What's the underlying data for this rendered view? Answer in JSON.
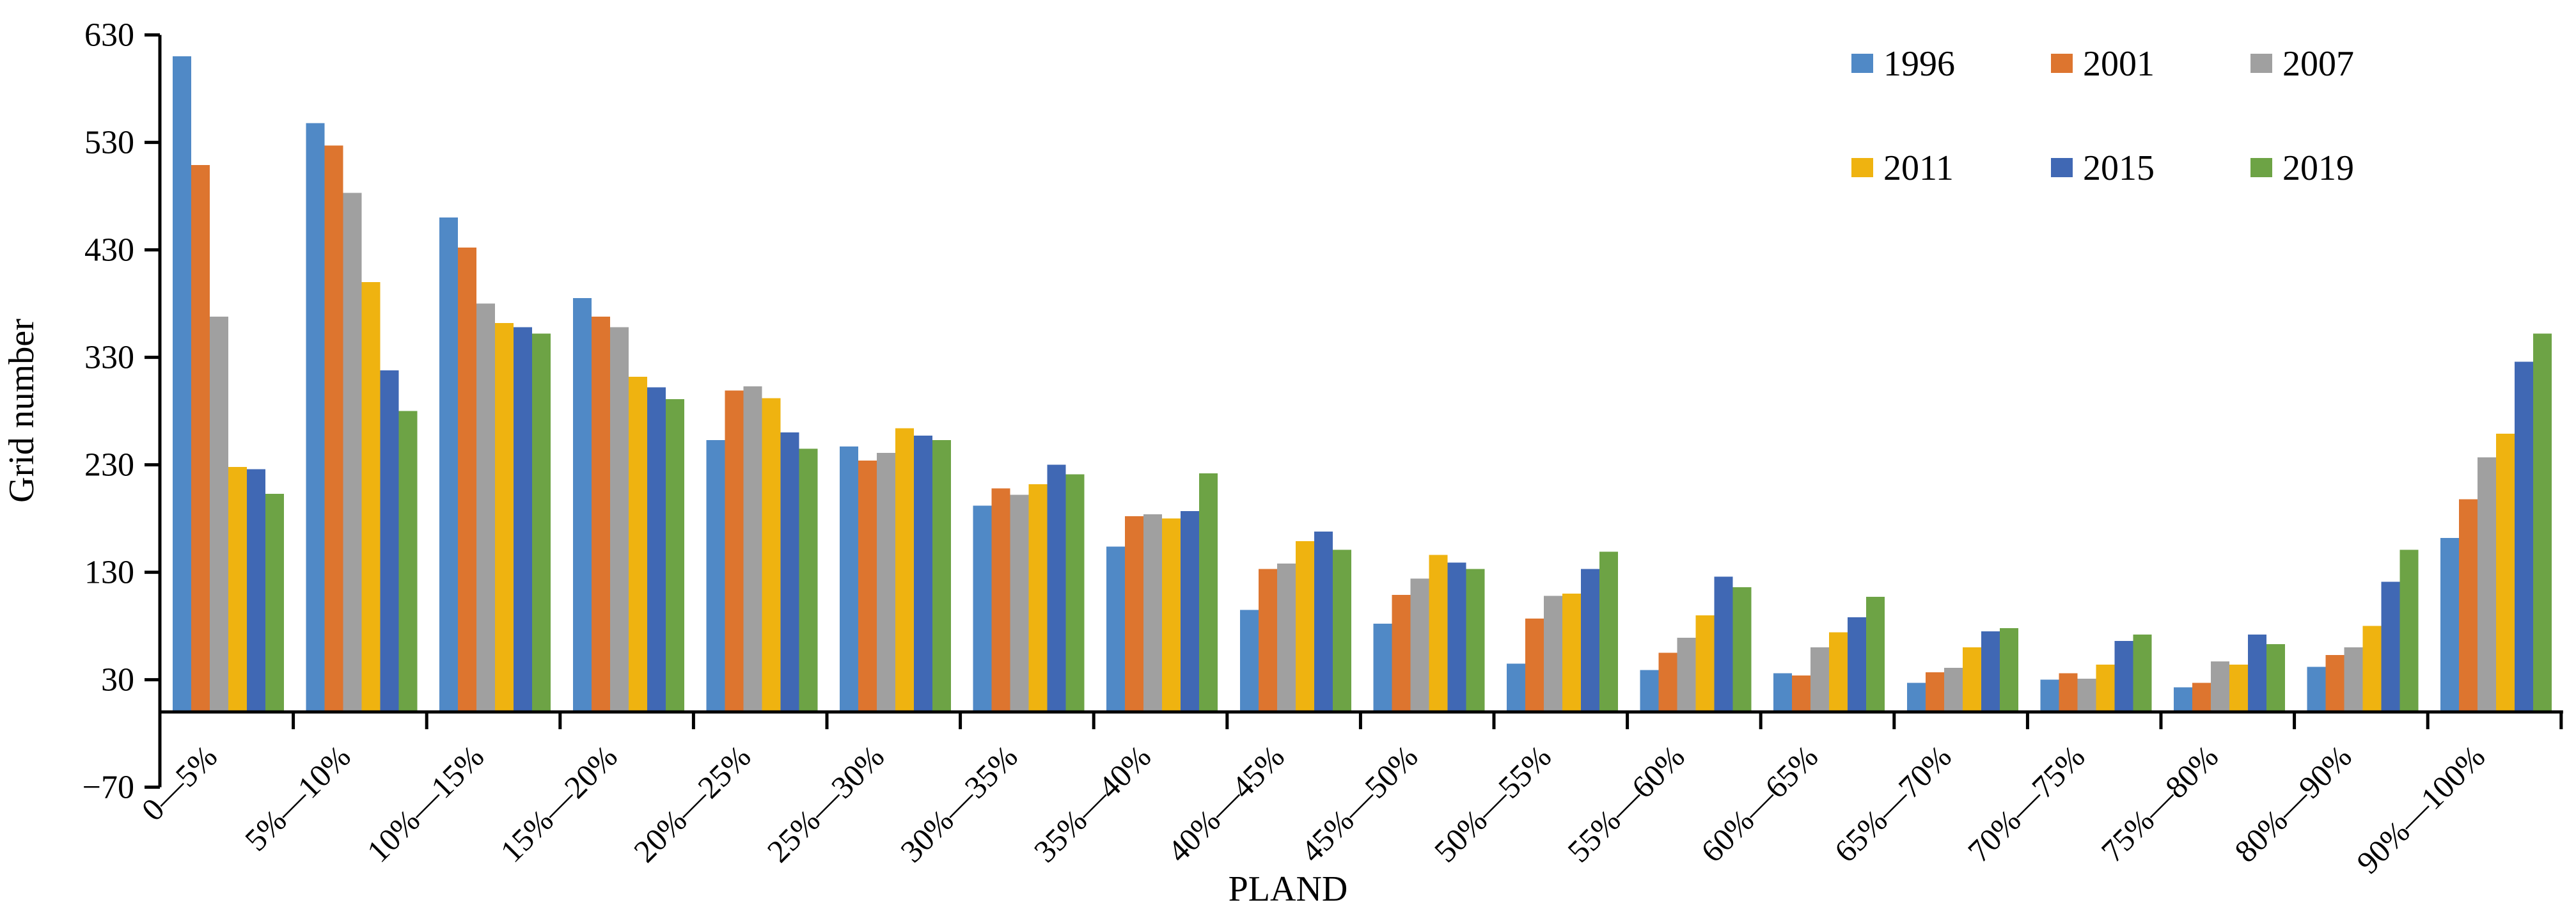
{
  "chart_data": {
    "type": "bar",
    "title": "",
    "xlabel": "PLAND",
    "ylabel": "Grid number",
    "ylim": [
      -70,
      630
    ],
    "yticks": [
      630,
      530,
      430,
      330,
      230,
      130,
      30,
      -70
    ],
    "ytick_step": 100,
    "baseline_value": 0,
    "grid": false,
    "legend_position": "top-right",
    "legend_layout": "2 rows x 3 columns",
    "axis_color": "#000000",
    "categories": [
      "0—5%",
      "5%—10%",
      "10%—15%",
      "15%—20%",
      "20%—25%",
      "25%—30%",
      "30%—35%",
      "35%—40%",
      "40%—45%",
      "45%—50%",
      "50%—55%",
      "55%—60%",
      "60%—65%",
      "65%—70%",
      "70%—75%",
      "75%—80%",
      "80%—90%",
      "90%—100%"
    ],
    "series": [
      {
        "name": "1996",
        "color": "#5089C6",
        "values": [
          610,
          548,
          460,
          385,
          253,
          247,
          192,
          154,
          95,
          82,
          45,
          39,
          36,
          27,
          30,
          23,
          42,
          162
        ]
      },
      {
        "name": "2001",
        "color": "#DD752F",
        "values": [
          509,
          527,
          432,
          368,
          299,
          234,
          208,
          182,
          133,
          109,
          87,
          55,
          34,
          37,
          36,
          27,
          53,
          198
        ]
      },
      {
        "name": "2007",
        "color": "#A0A0A0",
        "values": [
          368,
          483,
          380,
          358,
          303,
          241,
          202,
          184,
          138,
          124,
          108,
          69,
          60,
          41,
          31,
          47,
          60,
          237
        ]
      },
      {
        "name": "2011",
        "color": "#EFB310",
        "values": [
          228,
          400,
          362,
          312,
          292,
          264,
          212,
          180,
          159,
          146,
          110,
          90,
          74,
          60,
          44,
          44,
          80,
          259
        ]
      },
      {
        "name": "2015",
        "color": "#4068B4",
        "values": [
          226,
          318,
          358,
          302,
          260,
          257,
          230,
          187,
          168,
          139,
          133,
          126,
          88,
          75,
          66,
          72,
          121,
          326
        ]
      },
      {
        "name": "2019",
        "color": "#6DA345",
        "values": [
          203,
          280,
          352,
          291,
          245,
          253,
          221,
          222,
          151,
          133,
          149,
          116,
          107,
          78,
          72,
          63,
          151,
          352
        ]
      }
    ]
  }
}
